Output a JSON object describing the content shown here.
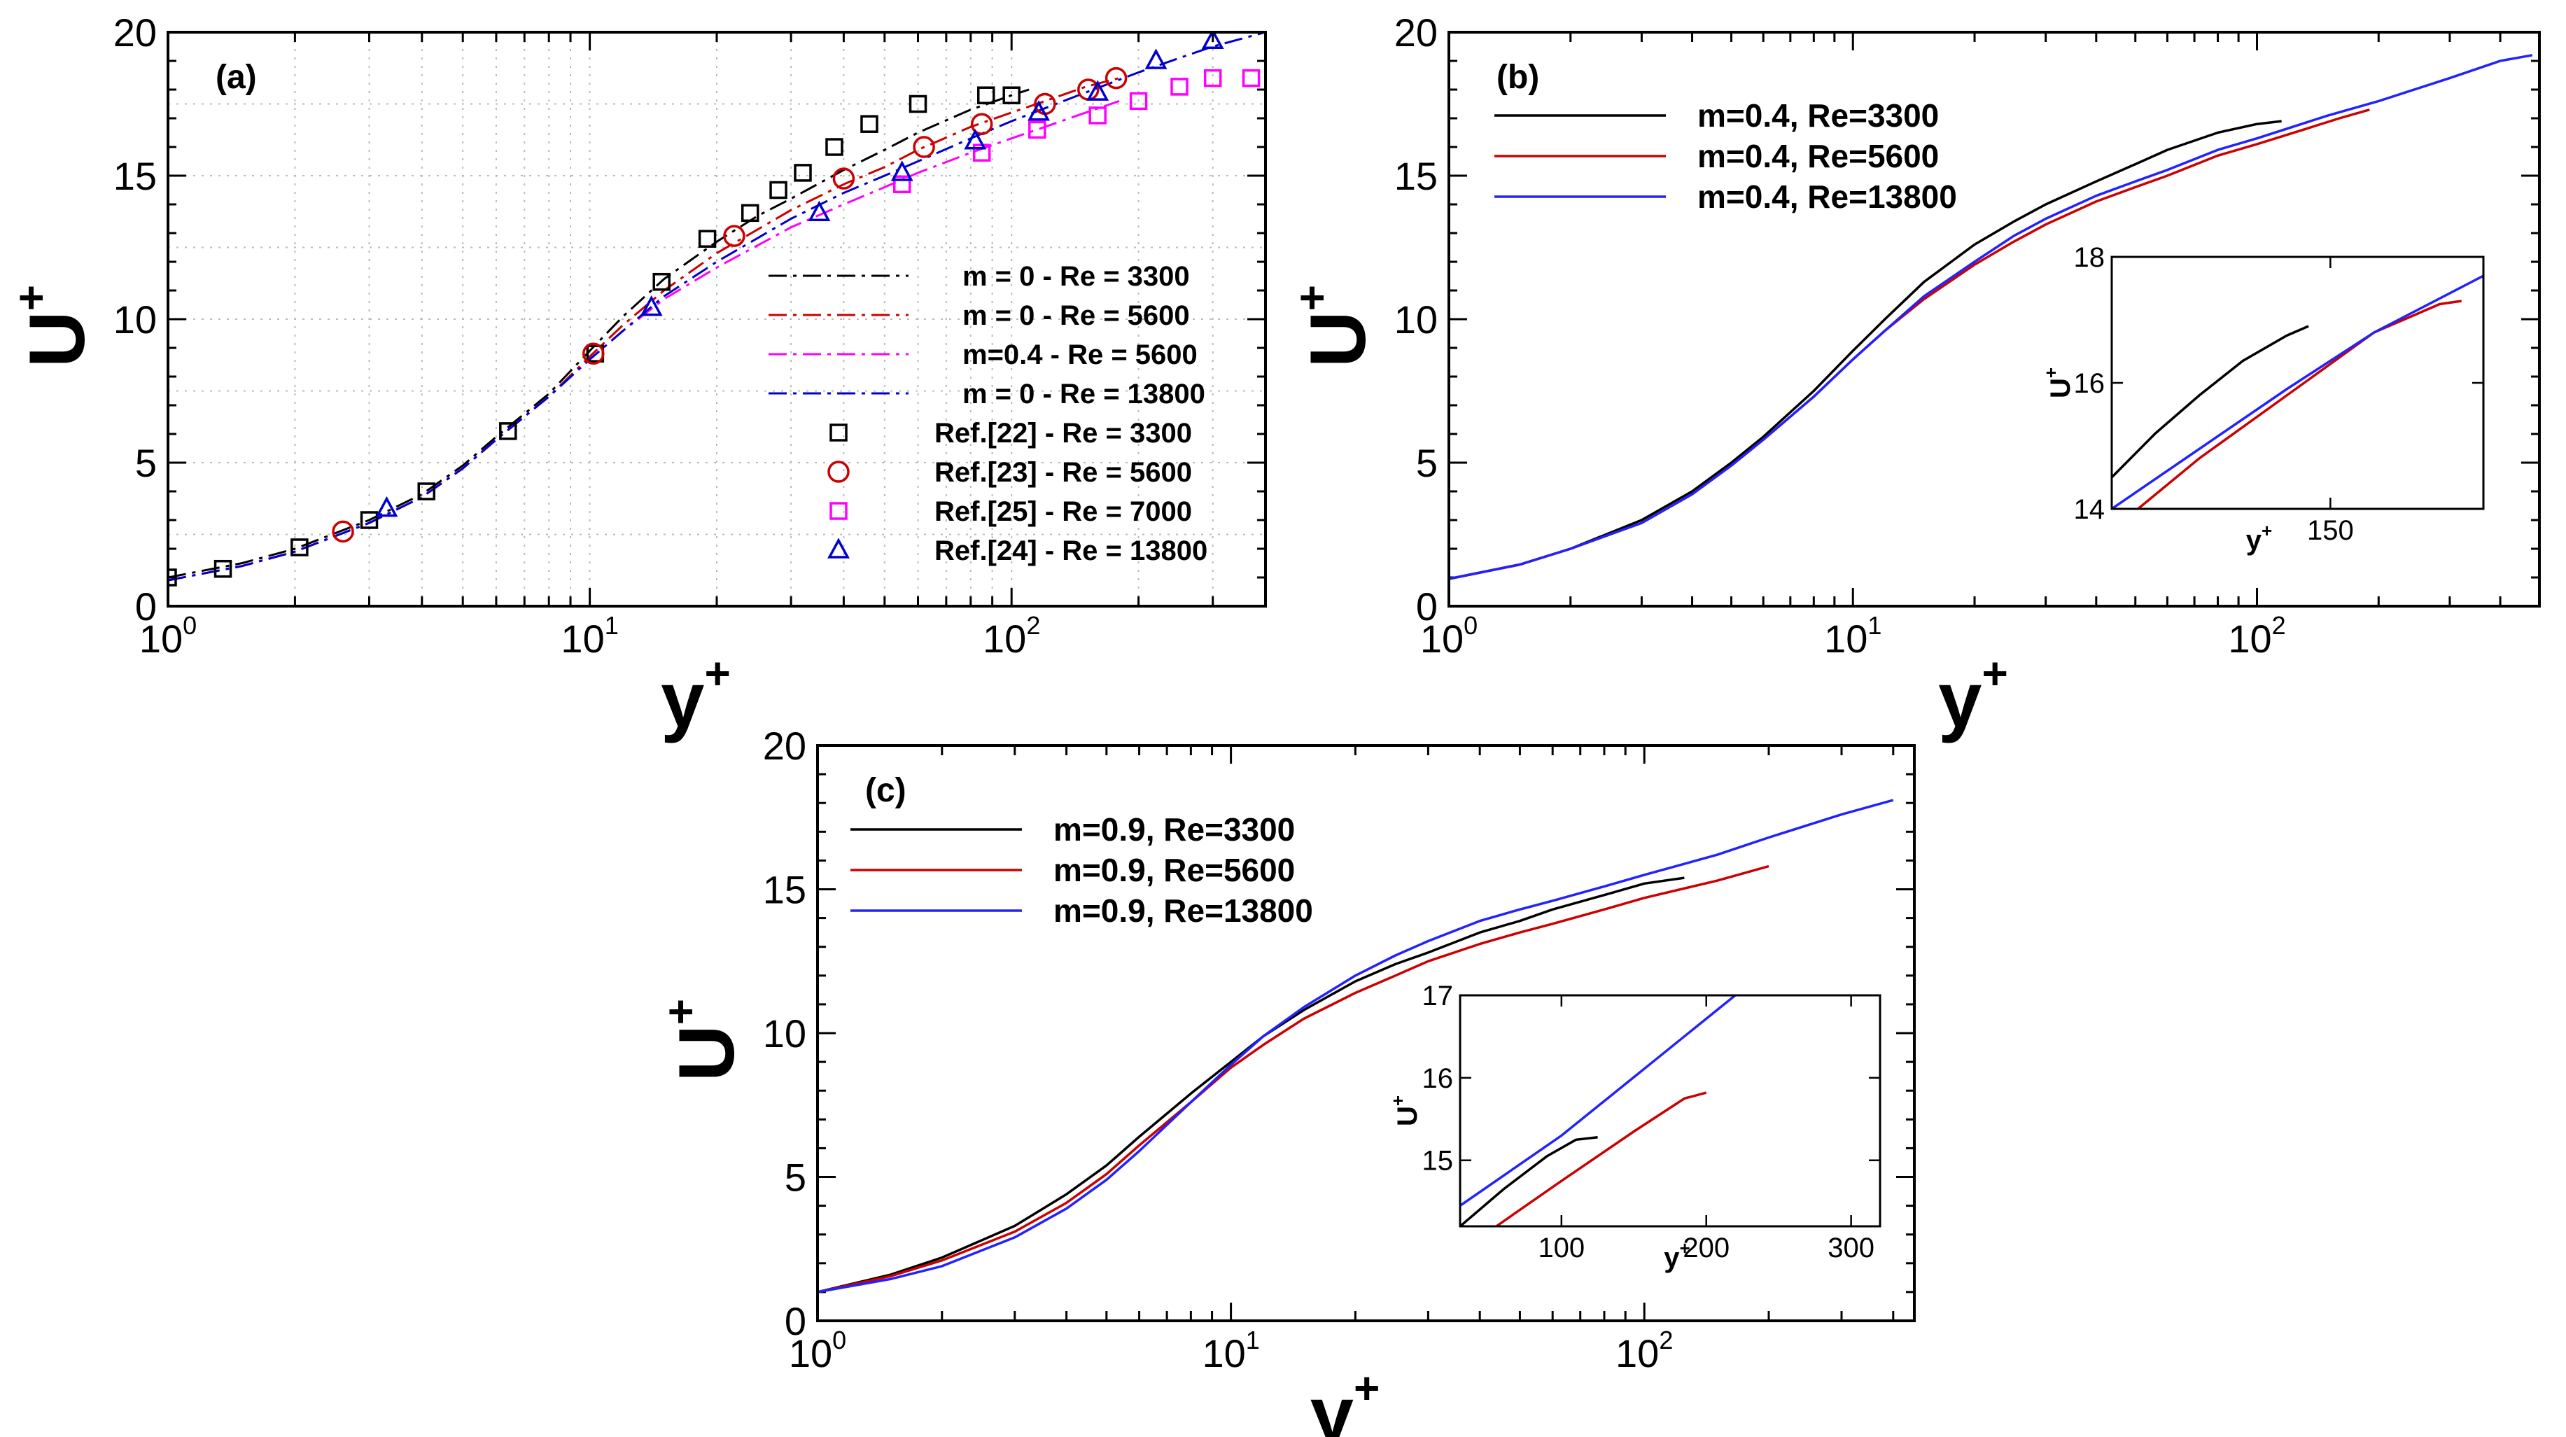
{
  "chart_data": [
    {
      "id": "a",
      "type": "line",
      "panel_label": "(a)",
      "xlabel": "y",
      "xlabel_sup": "+",
      "ylabel": "U",
      "ylabel_sup": "+",
      "xscale": "log",
      "xlim": [
        1,
        400
      ],
      "ylim": [
        0,
        20
      ],
      "yticks": [
        "0",
        "5",
        "10",
        "15",
        "20"
      ],
      "xticks": [
        {
          "base": "10",
          "exp": "0"
        },
        {
          "base": "10",
          "exp": "1"
        },
        {
          "base": "10",
          "exp": "2"
        }
      ],
      "grid": true,
      "legend_position": "right",
      "series": [
        {
          "name": "m = 0 - Re = 3300",
          "style": "dashdot",
          "color": "#000000",
          "x": [
            1,
            1.5,
            2,
            3,
            4,
            5,
            6,
            8,
            10,
            12,
            15,
            20,
            25,
            30,
            40,
            50,
            60,
            80,
            100,
            110
          ],
          "y": [
            1.0,
            1.5,
            2.0,
            3.0,
            3.9,
            4.9,
            5.9,
            7.4,
            8.9,
            10.1,
            11.4,
            12.7,
            13.6,
            14.2,
            15.2,
            15.9,
            16.5,
            17.3,
            17.8,
            18.0
          ]
        },
        {
          "name": "m = 0 - Re = 5600",
          "style": "dashdot",
          "color": "#cc0000",
          "x": [
            1,
            1.5,
            2,
            3,
            4,
            5,
            6,
            8,
            10,
            12,
            15,
            20,
            30,
            40,
            50,
            60,
            80,
            100,
            120,
            150,
            180
          ],
          "y": [
            0.9,
            1.4,
            1.9,
            2.9,
            3.8,
            4.8,
            5.8,
            7.3,
            8.7,
            9.8,
            11.0,
            12.3,
            13.8,
            14.7,
            15.3,
            15.9,
            16.7,
            17.2,
            17.6,
            18.1,
            18.4
          ]
        },
        {
          "name": "m=0.4 - Re = 5600",
          "style": "dashdot",
          "color": "#ff00ff",
          "x": [
            1,
            1.5,
            2,
            3,
            4,
            5,
            6,
            8,
            10,
            12,
            15,
            20,
            30,
            40,
            50,
            60,
            80,
            100,
            120,
            150,
            180
          ],
          "y": [
            0.9,
            1.4,
            1.9,
            2.9,
            3.8,
            4.8,
            5.8,
            7.3,
            8.6,
            9.6,
            10.7,
            11.8,
            13.2,
            14.0,
            14.6,
            15.1,
            15.8,
            16.3,
            16.7,
            17.2,
            17.6
          ]
        },
        {
          "name": "m = 0 - Re = 13800",
          "style": "dashdot",
          "color": "#0000cc",
          "x": [
            1,
            1.5,
            2,
            3,
            4,
            5,
            6,
            8,
            10,
            12,
            15,
            20,
            30,
            40,
            50,
            60,
            80,
            100,
            150,
            200,
            250,
            300,
            400
          ],
          "y": [
            0.9,
            1.4,
            1.9,
            2.9,
            3.8,
            4.8,
            5.8,
            7.3,
            8.6,
            9.6,
            10.8,
            12.0,
            13.5,
            14.4,
            15.0,
            15.5,
            16.3,
            16.9,
            17.9,
            18.6,
            19.1,
            19.5,
            20.0
          ]
        },
        {
          "name": "Ref.[22] - Re = 3300",
          "style": "marker",
          "marker": "square",
          "color": "#000000",
          "x": [
            1,
            1.35,
            2.05,
            3,
            4.1,
            6.4,
            10.3,
            14.8,
            19,
            24,
            28,
            32,
            38,
            46,
            60,
            87,
            100
          ],
          "y": [
            1.0,
            1.3,
            2.05,
            3.0,
            4.0,
            6.1,
            8.8,
            11.3,
            12.8,
            13.7,
            14.5,
            15.1,
            16.0,
            16.8,
            17.5,
            17.8,
            17.8
          ]
        },
        {
          "name": "Ref.[23] - Re = 5600",
          "style": "marker",
          "marker": "circle",
          "color": "#cc0000",
          "x": [
            2.6,
            10.2,
            22,
            40,
            62,
            85,
            120,
            152,
            177
          ],
          "y": [
            2.6,
            8.8,
            12.9,
            14.9,
            16.0,
            16.8,
            17.5,
            18.0,
            18.4
          ]
        },
        {
          "name": "Ref.[25] - Re = 7000",
          "style": "marker",
          "marker": "square",
          "color": "#ff00ff",
          "x": [
            55,
            85,
            115,
            160,
            200,
            250,
            300,
            370
          ],
          "y": [
            14.7,
            15.8,
            16.6,
            17.1,
            17.6,
            18.1,
            18.4,
            18.4
          ]
        },
        {
          "name": "Ref.[24] - Re = 13800",
          "style": "marker",
          "marker": "triangle",
          "color": "#0000cc",
          "x": [
            3.3,
            14,
            35,
            55,
            82,
            116,
            160,
            220,
            300
          ],
          "y": [
            3.4,
            10.4,
            13.7,
            15.1,
            16.2,
            17.2,
            17.9,
            19.0,
            19.7
          ]
        }
      ]
    },
    {
      "id": "b",
      "type": "line",
      "panel_label": "(b)",
      "xlabel": "y",
      "xlabel_sup": "+",
      "ylabel": "U",
      "ylabel_sup": "+",
      "xscale": "log",
      "xlim": [
        1,
        500
      ],
      "ylim": [
        0,
        20
      ],
      "yticks": [
        "0",
        "5",
        "10",
        "15",
        "20"
      ],
      "xticks": [
        {
          "base": "10",
          "exp": "0"
        },
        {
          "base": "10",
          "exp": "1"
        },
        {
          "base": "10",
          "exp": "2"
        }
      ],
      "grid": false,
      "legend_position": "top-left",
      "series": [
        {
          "name": "m=0.4, Re=3300",
          "color": "#000000",
          "x": [
            1,
            1.5,
            2,
            3,
            4,
            5,
            6,
            8,
            10,
            12,
            15,
            20,
            25,
            30,
            40,
            50,
            60,
            80,
            100,
            115
          ],
          "y": [
            0.95,
            1.45,
            2.0,
            3.0,
            4.0,
            5.0,
            5.9,
            7.5,
            8.9,
            10.0,
            11.3,
            12.6,
            13.4,
            14.0,
            14.8,
            15.4,
            15.9,
            16.5,
            16.8,
            16.9
          ]
        },
        {
          "name": "m=0.4, Re=5600",
          "color": "#cc0000",
          "x": [
            1,
            1.5,
            2,
            3,
            4,
            5,
            6,
            8,
            10,
            12,
            15,
            20,
            25,
            30,
            40,
            50,
            60,
            80,
            100,
            130,
            160,
            190
          ],
          "y": [
            0.95,
            1.45,
            2.0,
            2.9,
            3.9,
            4.9,
            5.8,
            7.3,
            8.6,
            9.6,
            10.7,
            11.9,
            12.7,
            13.3,
            14.1,
            14.6,
            15.0,
            15.7,
            16.1,
            16.6,
            17.0,
            17.3
          ]
        },
        {
          "name": "m=0.4, Re=13800",
          "color": "#2222ff",
          "x": [
            1,
            1.5,
            2,
            3,
            4,
            5,
            6,
            8,
            10,
            12,
            15,
            20,
            25,
            30,
            40,
            50,
            60,
            80,
            100,
            150,
            200,
            300,
            400,
            480
          ],
          "y": [
            0.95,
            1.45,
            2.0,
            2.9,
            3.9,
            4.9,
            5.8,
            7.3,
            8.6,
            9.6,
            10.8,
            12.0,
            12.9,
            13.5,
            14.3,
            14.8,
            15.2,
            15.9,
            16.3,
            17.1,
            17.6,
            18.4,
            19.0,
            19.2
          ]
        }
      ],
      "inset": {
        "xlabel": "y",
        "xlabel_sup": "+",
        "ylabel": "U",
        "ylabel_sup": "+",
        "xlim": [
          100,
          185
        ],
        "ylim": [
          14,
          18
        ],
        "yticks": [
          "14",
          "16",
          "18"
        ],
        "xticks": [
          "150"
        ],
        "series": [
          {
            "name": "m=0.4, Re=3300",
            "color": "#000000",
            "x": [
              100,
              110,
              120,
              130,
              140,
              145
            ],
            "y": [
              14.5,
              15.2,
              15.8,
              16.35,
              16.75,
              16.9
            ]
          },
          {
            "name": "m=0.4, Re=5600",
            "color": "#cc0000",
            "x": [
              106,
              120,
              140,
              160,
              175,
              180
            ],
            "y": [
              14.0,
              14.8,
              15.8,
              16.8,
              17.25,
              17.3
            ]
          },
          {
            "name": "m=0.4, Re=13800",
            "color": "#2222ff",
            "x": [
              100,
              120,
              140,
              160,
              185
            ],
            "y": [
              14.0,
              14.95,
              15.9,
              16.8,
              17.7
            ]
          }
        ]
      }
    },
    {
      "id": "c",
      "type": "line",
      "panel_label": "(c)",
      "xlabel": "y",
      "xlabel_sup": "+",
      "ylabel": "U",
      "ylabel_sup": "+",
      "xscale": "log",
      "xlim": [
        1,
        450
      ],
      "ylim": [
        0,
        20
      ],
      "yticks": [
        "0",
        "5",
        "10",
        "15",
        "20"
      ],
      "xticks": [
        {
          "base": "10",
          "exp": "0"
        },
        {
          "base": "10",
          "exp": "1"
        },
        {
          "base": "10",
          "exp": "2"
        }
      ],
      "grid": false,
      "legend_position": "top-left",
      "series": [
        {
          "name": "m=0.9, Re=3300",
          "color": "#000000",
          "x": [
            1,
            1.5,
            2,
            3,
            4,
            5,
            6,
            8,
            10,
            12,
            15,
            20,
            25,
            30,
            40,
            50,
            60,
            80,
            100,
            125
          ],
          "y": [
            1.0,
            1.6,
            2.2,
            3.3,
            4.4,
            5.4,
            6.4,
            7.9,
            9.0,
            9.9,
            10.8,
            11.8,
            12.4,
            12.8,
            13.5,
            13.9,
            14.3,
            14.8,
            15.2,
            15.4
          ]
        },
        {
          "name": "m=0.9, Re=5600",
          "color": "#cc0000",
          "x": [
            1,
            1.5,
            2,
            3,
            4,
            5,
            6,
            8,
            10,
            12,
            15,
            20,
            25,
            30,
            40,
            50,
            60,
            80,
            100,
            150,
            200
          ],
          "y": [
            1.0,
            1.55,
            2.1,
            3.1,
            4.1,
            5.1,
            6.1,
            7.6,
            8.8,
            9.6,
            10.5,
            11.4,
            12.0,
            12.5,
            13.1,
            13.5,
            13.8,
            14.3,
            14.7,
            15.3,
            15.8
          ]
        },
        {
          "name": "m=0.9, Re=13800",
          "color": "#2222ff",
          "x": [
            1,
            1.5,
            2,
            3,
            4,
            5,
            6,
            8,
            10,
            12,
            15,
            20,
            25,
            30,
            40,
            50,
            60,
            80,
            100,
            150,
            200,
            300,
            400
          ],
          "y": [
            1.0,
            1.45,
            1.9,
            2.9,
            3.9,
            4.9,
            5.9,
            7.6,
            8.9,
            9.9,
            10.9,
            12.0,
            12.7,
            13.2,
            13.9,
            14.3,
            14.6,
            15.1,
            15.5,
            16.2,
            16.8,
            17.6,
            18.1
          ]
        }
      ],
      "inset": {
        "xlabel": "y",
        "xlabel_sup": "+",
        "ylabel": "U",
        "ylabel_sup": "+",
        "xlim": [
          30,
          320
        ],
        "ylim": [
          14.2,
          17
        ],
        "yticks": [
          "15",
          "16",
          "17"
        ],
        "xticks": [
          "100",
          "200",
          "300"
        ],
        "series": [
          {
            "name": "m=0.9, Re=3300",
            "color": "#000000",
            "x": [
              30,
              60,
              90,
              110,
              125
            ],
            "y": [
              14.2,
              14.65,
              15.05,
              15.25,
              15.28
            ]
          },
          {
            "name": "m=0.9, Re=5600",
            "color": "#cc0000",
            "x": [
              55,
              100,
              150,
              185,
              200
            ],
            "y": [
              14.2,
              14.75,
              15.35,
              15.75,
              15.82
            ]
          },
          {
            "name": "m=0.9, Re=13800",
            "color": "#2222ff",
            "x": [
              30,
              100,
              160,
              220
            ],
            "y": [
              14.45,
              15.3,
              16.15,
              17.0
            ]
          }
        ]
      }
    }
  ]
}
